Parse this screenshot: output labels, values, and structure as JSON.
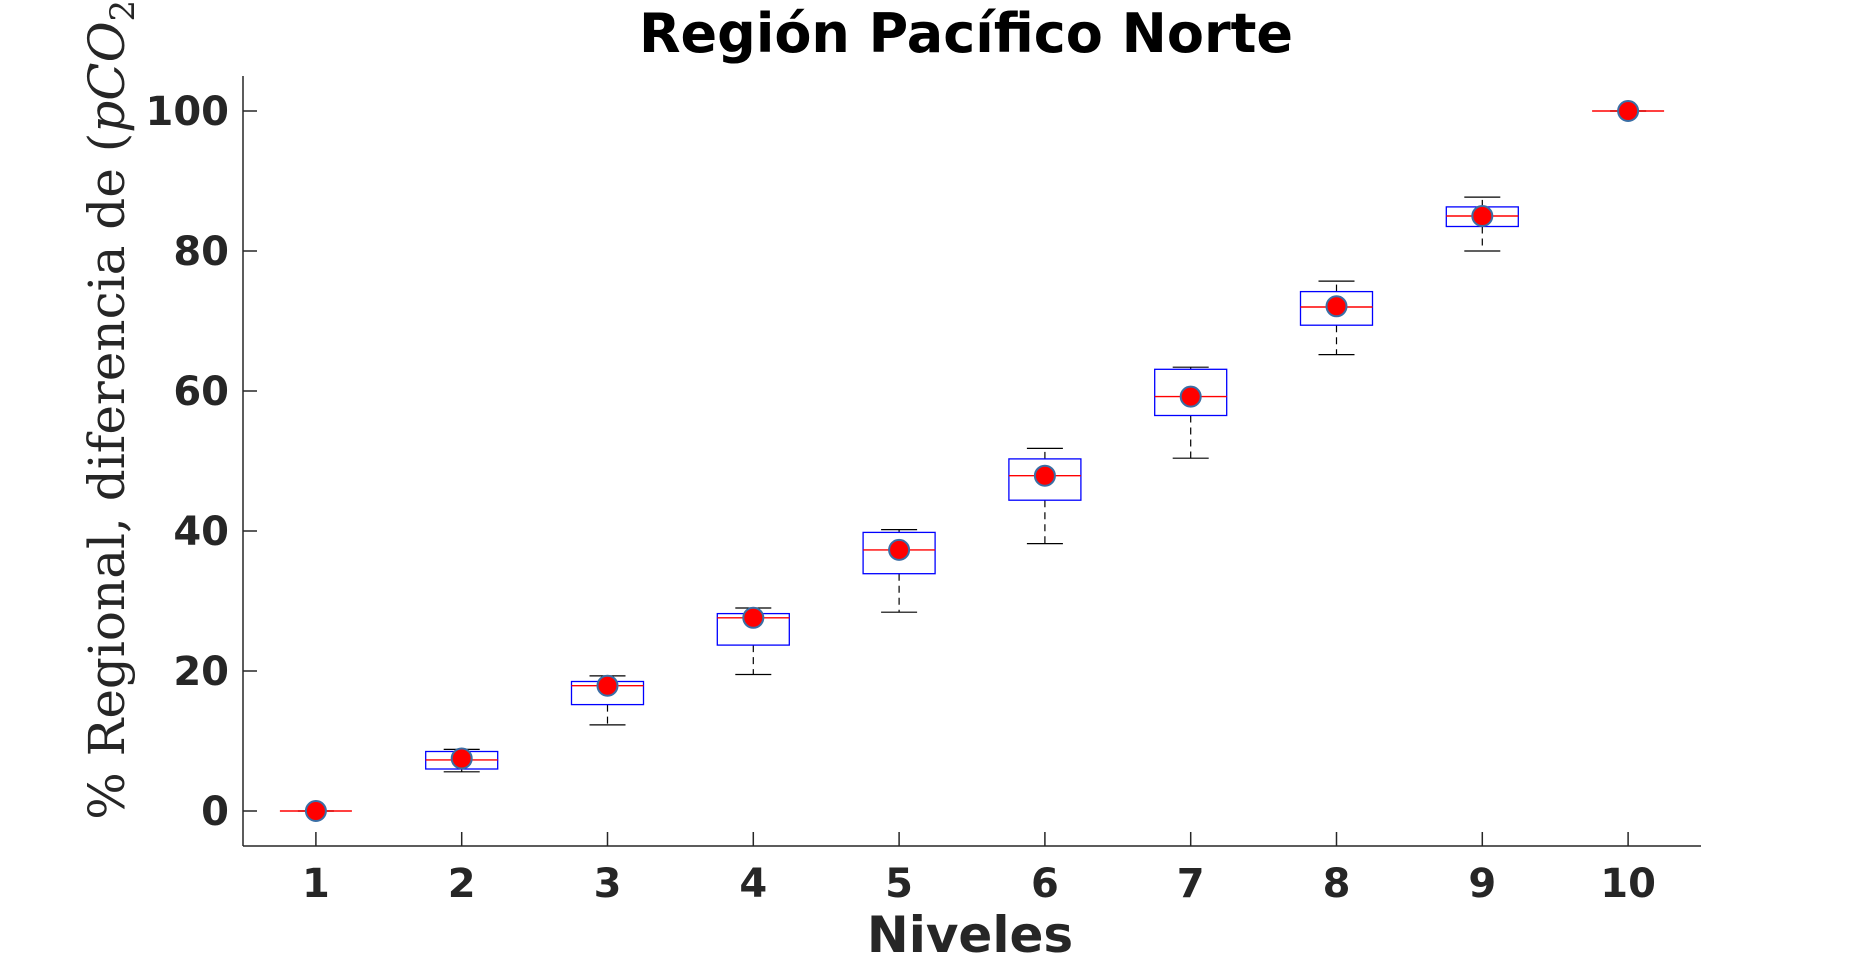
{
  "chart_data": {
    "type": "boxplot",
    "title": "Región Pacífico Norte",
    "xlabel": "Niveles",
    "ylabel_main": "% Regional, diferencia de (",
    "ylabel_italic_p": "p",
    "ylabel_italic_co": "CO",
    "ylabel_subscript": "2",
    "ylabel_close": ")",
    "categories": [
      "1",
      "2",
      "3",
      "4",
      "5",
      "6",
      "7",
      "8",
      "9",
      "10"
    ],
    "y_ticks": [
      "0",
      "20",
      "40",
      "60",
      "80",
      "100"
    ],
    "y_tick_values": [
      0,
      20,
      40,
      60,
      80,
      100
    ],
    "ylim": [
      -5,
      105
    ],
    "xlim": [
      0.5,
      10.5
    ],
    "boxes": [
      {
        "level": 1,
        "whisker_low": 0,
        "q1": 0,
        "median": 0,
        "q3": 0,
        "whisker_high": 0,
        "marker": 0
      },
      {
        "level": 2,
        "whisker_low": 5.6,
        "q1": 6.0,
        "median": 7.3,
        "q3": 8.5,
        "whisker_high": 8.8,
        "marker": 7.5
      },
      {
        "level": 3,
        "whisker_low": 12.3,
        "q1": 15.2,
        "median": 17.9,
        "q3": 18.5,
        "whisker_high": 19.3,
        "marker": 17.9
      },
      {
        "level": 4,
        "whisker_low": 19.5,
        "q1": 23.7,
        "median": 27.6,
        "q3": 28.2,
        "whisker_high": 29.0,
        "marker": 27.6
      },
      {
        "level": 5,
        "whisker_low": 28.4,
        "q1": 33.9,
        "median": 37.3,
        "q3": 39.8,
        "whisker_high": 40.2,
        "marker": 37.3
      },
      {
        "level": 6,
        "whisker_low": 38.2,
        "q1": 44.4,
        "median": 47.9,
        "q3": 50.3,
        "whisker_high": 51.8,
        "marker": 47.9
      },
      {
        "level": 7,
        "whisker_low": 50.4,
        "q1": 56.5,
        "median": 59.2,
        "q3": 63.1,
        "whisker_high": 63.4,
        "marker": 59.2
      },
      {
        "level": 8,
        "whisker_low": 65.2,
        "q1": 69.4,
        "median": 72.0,
        "q3": 74.2,
        "whisker_high": 75.7,
        "marker": 72.1
      },
      {
        "level": 9,
        "whisker_low": 80.0,
        "q1": 83.5,
        "median": 85.0,
        "q3": 86.3,
        "whisker_high": 87.7,
        "marker": 85.0
      },
      {
        "level": 10,
        "whisker_low": 100,
        "q1": 100,
        "median": 100,
        "q3": 100,
        "whisker_high": 100,
        "marker": 100
      }
    ],
    "grid": false,
    "colors": {
      "box": "#0000ff",
      "median": "#ff0000",
      "whisker": "#000000",
      "marker_fill": "#ff0000",
      "marker_edge": "#3a6ea5",
      "axis": "#262626"
    }
  }
}
